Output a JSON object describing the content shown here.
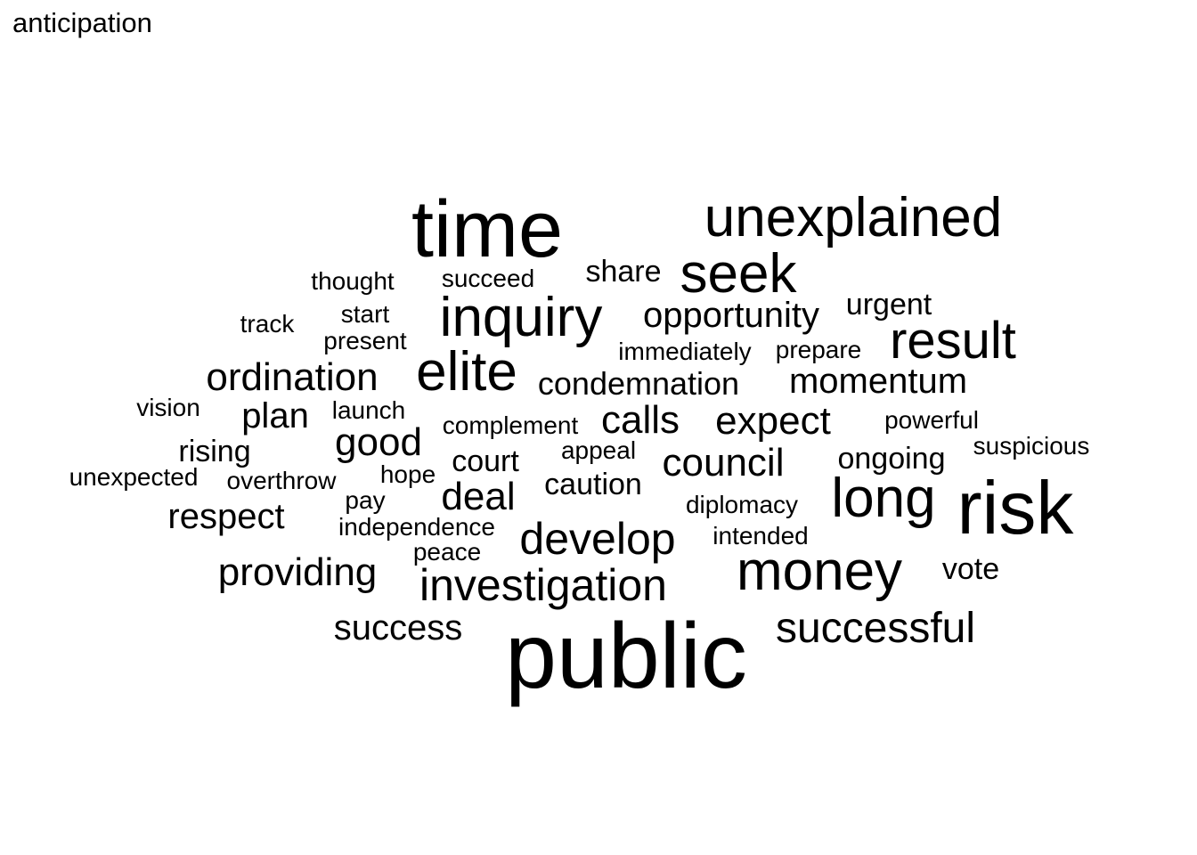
{
  "title": "anticipation",
  "text_color": "#000000",
  "background": "#ffffff",
  "words": [
    {
      "text": "public",
      "weight": 10
    },
    {
      "text": "time",
      "weight": 9.3
    },
    {
      "text": "risk",
      "weight": 8.5
    },
    {
      "text": "unexplained",
      "weight": 6.3
    },
    {
      "text": "long",
      "weight": 6.3
    },
    {
      "text": "money",
      "weight": 6.3
    },
    {
      "text": "seek",
      "weight": 6.3
    },
    {
      "text": "inquiry",
      "weight": 6.3
    },
    {
      "text": "elite",
      "weight": 6.3
    },
    {
      "text": "result",
      "weight": 5.9
    },
    {
      "text": "investigation",
      "weight": 5.1
    },
    {
      "text": "develop",
      "weight": 5.1
    },
    {
      "text": "successful",
      "weight": 4.9
    },
    {
      "text": "providing",
      "weight": 4.5
    },
    {
      "text": "ordination",
      "weight": 4.5
    },
    {
      "text": "deal",
      "weight": 4.5
    },
    {
      "text": "council",
      "weight": 4.5
    },
    {
      "text": "expect",
      "weight": 4.5
    },
    {
      "text": "calls",
      "weight": 4.5
    },
    {
      "text": "good",
      "weight": 4.5
    },
    {
      "text": "opportunity",
      "weight": 4.1
    },
    {
      "text": "momentum",
      "weight": 4.1
    },
    {
      "text": "success",
      "weight": 4.1
    },
    {
      "text": "plan",
      "weight": 4.1
    },
    {
      "text": "respect",
      "weight": 4.1
    },
    {
      "text": "condemnation",
      "weight": 3.7
    },
    {
      "text": "court",
      "weight": 3.5
    },
    {
      "text": "caution",
      "weight": 3.5
    },
    {
      "text": "ongoing",
      "weight": 3.5
    },
    {
      "text": "urgent",
      "weight": 3.5
    },
    {
      "text": "share",
      "weight": 3.5
    },
    {
      "text": "vote",
      "weight": 3.5
    },
    {
      "text": "rising",
      "weight": 3.5
    },
    {
      "text": "thought",
      "weight": 3
    },
    {
      "text": "succeed",
      "weight": 3
    },
    {
      "text": "start",
      "weight": 3
    },
    {
      "text": "present",
      "weight": 3
    },
    {
      "text": "track",
      "weight": 3
    },
    {
      "text": "immediately",
      "weight": 3
    },
    {
      "text": "prepare",
      "weight": 3
    },
    {
      "text": "vision",
      "weight": 3
    },
    {
      "text": "launch",
      "weight": 3
    },
    {
      "text": "complement",
      "weight": 3
    },
    {
      "text": "powerful",
      "weight": 3
    },
    {
      "text": "suspicious",
      "weight": 3
    },
    {
      "text": "appeal",
      "weight": 3
    },
    {
      "text": "unexpected",
      "weight": 3
    },
    {
      "text": "overthrow",
      "weight": 3
    },
    {
      "text": "hope",
      "weight": 3
    },
    {
      "text": "pay",
      "weight": 3
    },
    {
      "text": "diplomacy",
      "weight": 3
    },
    {
      "text": "independence",
      "weight": 3
    },
    {
      "text": "intended",
      "weight": 3
    },
    {
      "text": "peace",
      "weight": 3
    }
  ]
}
